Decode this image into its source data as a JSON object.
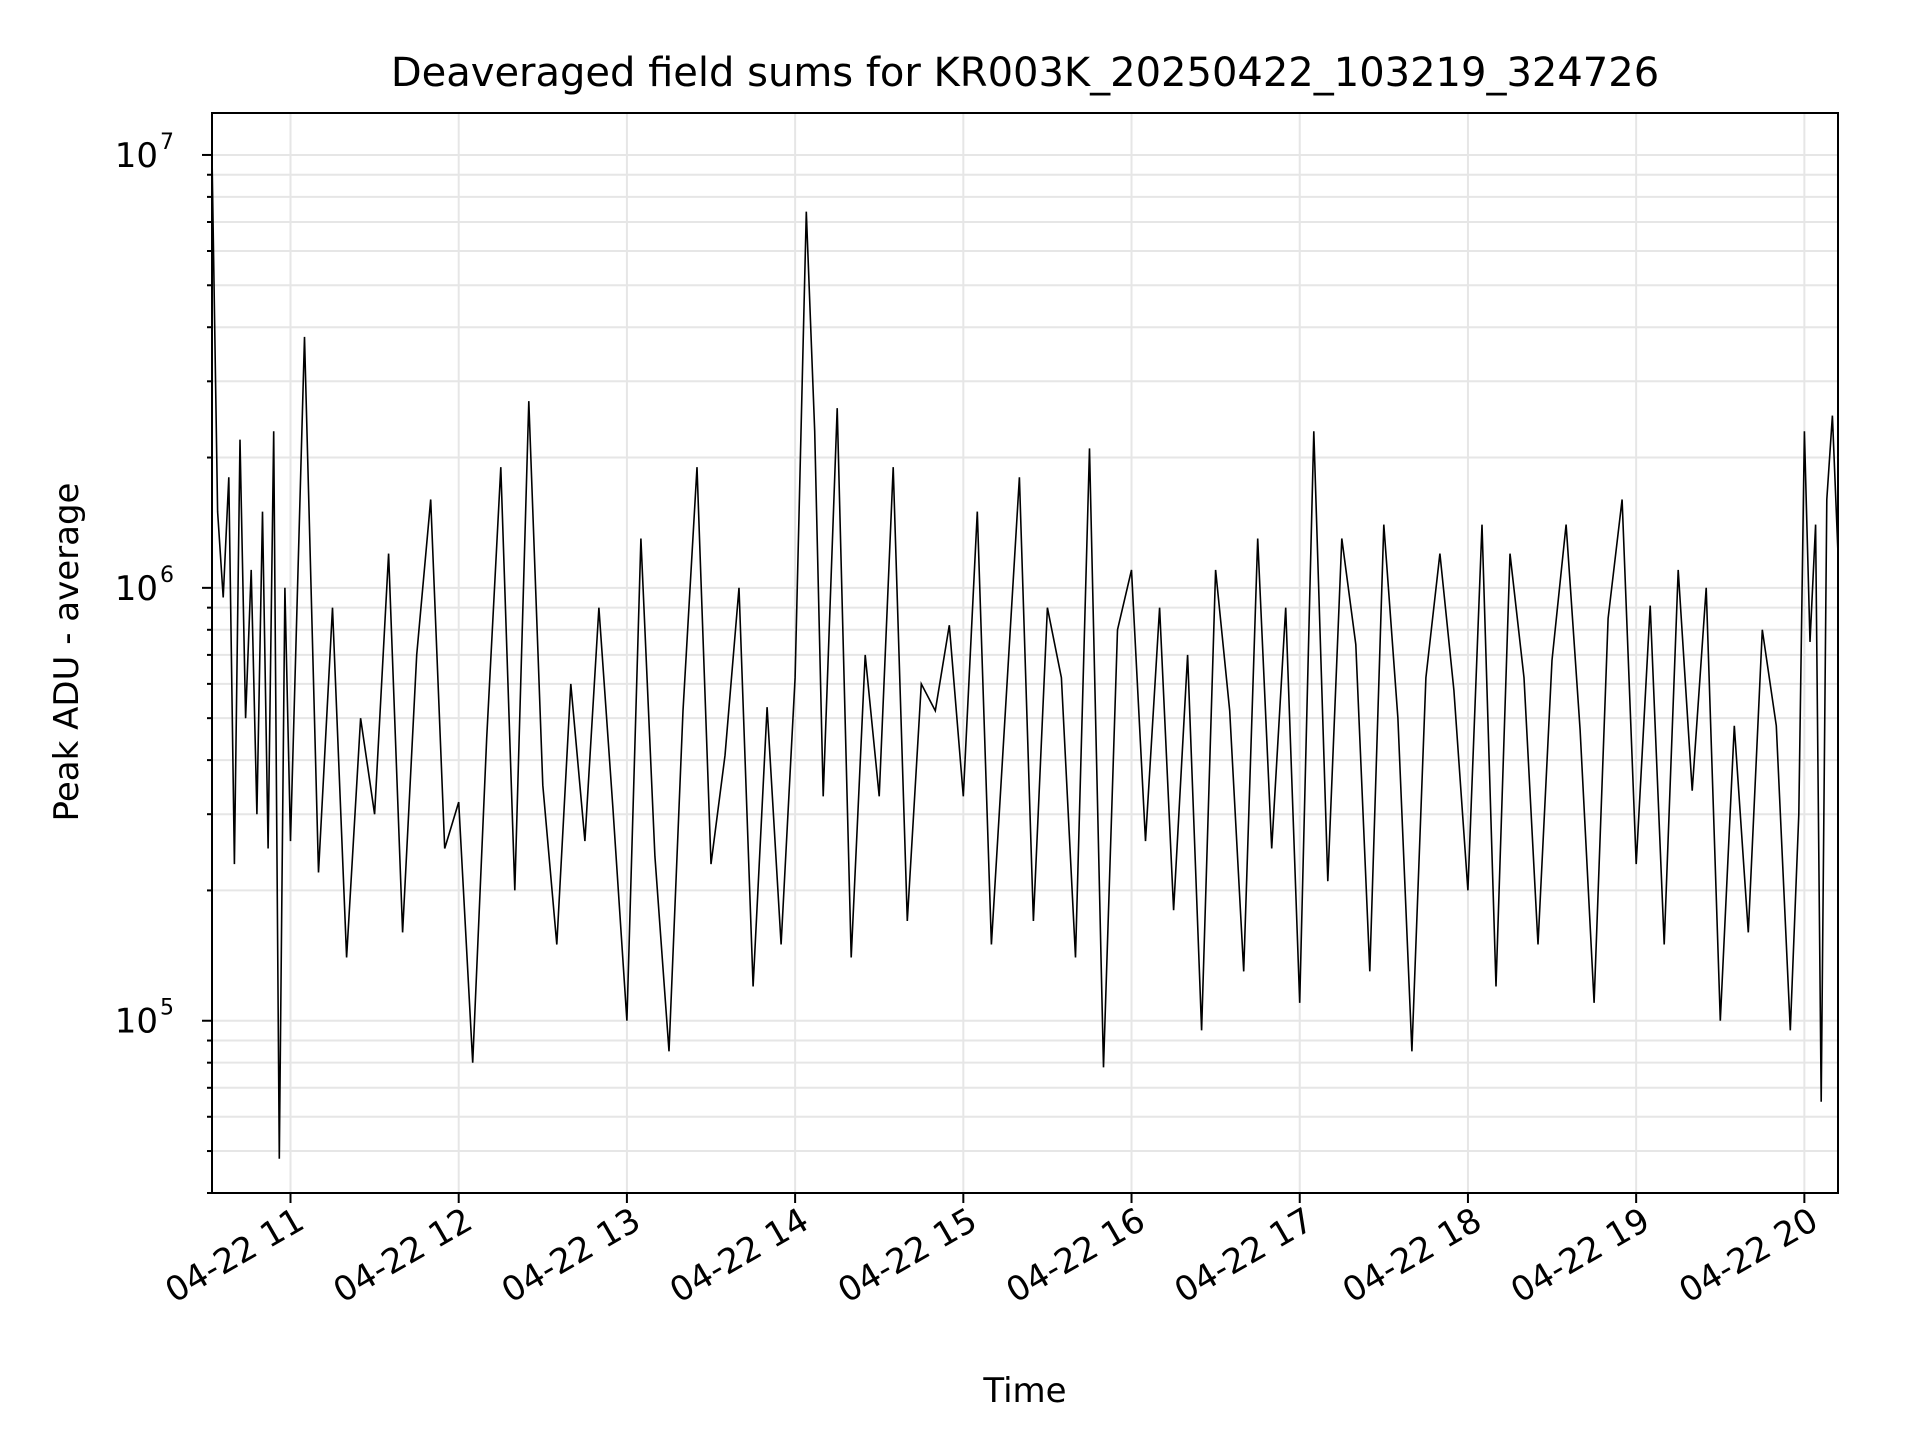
{
  "chart_data": {
    "type": "line",
    "title": "Deaveraged field sums for KR003K_20250422_103219_324726",
    "xlabel": "Time",
    "ylabel": "Peak ADU - average",
    "y_scale": "log",
    "ylim": [
      40000,
      12500000
    ],
    "xlim": [
      "2025-04-22 10:32",
      "2025-04-22 20:12"
    ],
    "grid": true,
    "line_color": "#000000",
    "x_ticks": [
      {
        "t": "2025-04-22 11:00",
        "label": "04-22 11"
      },
      {
        "t": "2025-04-22 12:00",
        "label": "04-22 12"
      },
      {
        "t": "2025-04-22 13:00",
        "label": "04-22 13"
      },
      {
        "t": "2025-04-22 14:00",
        "label": "04-22 14"
      },
      {
        "t": "2025-04-22 15:00",
        "label": "04-22 15"
      },
      {
        "t": "2025-04-22 16:00",
        "label": "04-22 16"
      },
      {
        "t": "2025-04-22 17:00",
        "label": "04-22 17"
      },
      {
        "t": "2025-04-22 18:00",
        "label": "04-22 18"
      },
      {
        "t": "2025-04-22 19:00",
        "label": "04-22 19"
      },
      {
        "t": "2025-04-22 20:00",
        "label": "04-22 20"
      }
    ],
    "y_ticks": [
      {
        "v": 100000,
        "base": "10",
        "exp": "5"
      },
      {
        "v": 1000000,
        "base": "10",
        "exp": "6"
      },
      {
        "v": 10000000,
        "base": "10",
        "exp": "7"
      }
    ],
    "series": [
      {
        "x": [
          "2025-04-22 10:32",
          "2025-04-22 10:34",
          "2025-04-22 10:36",
          "2025-04-22 10:38",
          "2025-04-22 10:40",
          "2025-04-22 10:42",
          "2025-04-22 10:44",
          "2025-04-22 10:46",
          "2025-04-22 10:48",
          "2025-04-22 10:50",
          "2025-04-22 10:52",
          "2025-04-22 10:54",
          "2025-04-22 10:56",
          "2025-04-22 10:58",
          "2025-04-22 11:00",
          "2025-04-22 11:05",
          "2025-04-22 11:10",
          "2025-04-22 11:15",
          "2025-04-22 11:20",
          "2025-04-22 11:25",
          "2025-04-22 11:30",
          "2025-04-22 11:35",
          "2025-04-22 11:40",
          "2025-04-22 11:45",
          "2025-04-22 11:50",
          "2025-04-22 11:55",
          "2025-04-22 12:00",
          "2025-04-22 12:05",
          "2025-04-22 12:10",
          "2025-04-22 12:15",
          "2025-04-22 12:20",
          "2025-04-22 12:25",
          "2025-04-22 12:30",
          "2025-04-22 12:35",
          "2025-04-22 12:40",
          "2025-04-22 12:45",
          "2025-04-22 12:50",
          "2025-04-22 12:55",
          "2025-04-22 13:00",
          "2025-04-22 13:05",
          "2025-04-22 13:10",
          "2025-04-22 13:15",
          "2025-04-22 13:20",
          "2025-04-22 13:25",
          "2025-04-22 13:30",
          "2025-04-22 13:35",
          "2025-04-22 13:40",
          "2025-04-22 13:45",
          "2025-04-22 13:50",
          "2025-04-22 13:55",
          "2025-04-22 14:00",
          "2025-04-22 14:04",
          "2025-04-22 14:07",
          "2025-04-22 14:10",
          "2025-04-22 14:15",
          "2025-04-22 14:20",
          "2025-04-22 14:25",
          "2025-04-22 14:30",
          "2025-04-22 14:35",
          "2025-04-22 14:40",
          "2025-04-22 14:45",
          "2025-04-22 14:50",
          "2025-04-22 14:55",
          "2025-04-22 15:00",
          "2025-04-22 15:05",
          "2025-04-22 15:10",
          "2025-04-22 15:15",
          "2025-04-22 15:20",
          "2025-04-22 15:25",
          "2025-04-22 15:30",
          "2025-04-22 15:35",
          "2025-04-22 15:40",
          "2025-04-22 15:45",
          "2025-04-22 15:50",
          "2025-04-22 15:55",
          "2025-04-22 16:00",
          "2025-04-22 16:05",
          "2025-04-22 16:10",
          "2025-04-22 16:15",
          "2025-04-22 16:20",
          "2025-04-22 16:25",
          "2025-04-22 16:30",
          "2025-04-22 16:35",
          "2025-04-22 16:40",
          "2025-04-22 16:45",
          "2025-04-22 16:50",
          "2025-04-22 16:55",
          "2025-04-22 17:00",
          "2025-04-22 17:05",
          "2025-04-22 17:10",
          "2025-04-22 17:15",
          "2025-04-22 17:20",
          "2025-04-22 17:25",
          "2025-04-22 17:30",
          "2025-04-22 17:35",
          "2025-04-22 17:40",
          "2025-04-22 17:45",
          "2025-04-22 17:50",
          "2025-04-22 17:55",
          "2025-04-22 18:00",
          "2025-04-22 18:05",
          "2025-04-22 18:10",
          "2025-04-22 18:15",
          "2025-04-22 18:20",
          "2025-04-22 18:25",
          "2025-04-22 18:30",
          "2025-04-22 18:35",
          "2025-04-22 18:40",
          "2025-04-22 18:45",
          "2025-04-22 18:50",
          "2025-04-22 18:55",
          "2025-04-22 19:00",
          "2025-04-22 19:05",
          "2025-04-22 19:10",
          "2025-04-22 19:15",
          "2025-04-22 19:20",
          "2025-04-22 19:25",
          "2025-04-22 19:30",
          "2025-04-22 19:35",
          "2025-04-22 19:40",
          "2025-04-22 19:45",
          "2025-04-22 19:50",
          "2025-04-22 19:55",
          "2025-04-22 19:58",
          "2025-04-22 20:00",
          "2025-04-22 20:02",
          "2025-04-22 20:04",
          "2025-04-22 20:06",
          "2025-04-22 20:08",
          "2025-04-22 20:10",
          "2025-04-22 20:12"
        ],
        "y": [
          10000000,
          1500000,
          950000,
          1800000,
          230000,
          2200000,
          500000,
          1100000,
          300000,
          1500000,
          250000,
          2300000,
          48000,
          1000000,
          260000,
          3800000,
          220000,
          900000,
          140000,
          500000,
          300000,
          1200000,
          160000,
          700000,
          1600000,
          250000,
          320000,
          80000,
          450000,
          1900000,
          200000,
          2700000,
          350000,
          150000,
          600000,
          260000,
          900000,
          310000,
          100000,
          1300000,
          240000,
          85000,
          520000,
          1900000,
          230000,
          410000,
          1000000,
          120000,
          530000,
          150000,
          620000,
          7400000,
          2300000,
          330000,
          2600000,
          140000,
          700000,
          330000,
          1900000,
          170000,
          600000,
          520000,
          820000,
          330000,
          1500000,
          150000,
          520000,
          1800000,
          170000,
          900000,
          620000,
          140000,
          2100000,
          78000,
          800000,
          1100000,
          260000,
          900000,
          180000,
          700000,
          95000,
          1100000,
          520000,
          130000,
          1300000,
          250000,
          900000,
          110000,
          2300000,
          210000,
          1300000,
          740000,
          130000,
          1400000,
          500000,
          85000,
          620000,
          1200000,
          580000,
          200000,
          1400000,
          120000,
          1200000,
          620000,
          150000,
          680000,
          1400000,
          470000,
          110000,
          850000,
          1600000,
          230000,
          910000,
          150000,
          1100000,
          340000,
          1000000,
          100000,
          480000,
          160000,
          800000,
          480000,
          95000,
          300000,
          2300000,
          750000,
          1400000,
          65000,
          1600000,
          2500000,
          1200000
        ]
      }
    ]
  }
}
